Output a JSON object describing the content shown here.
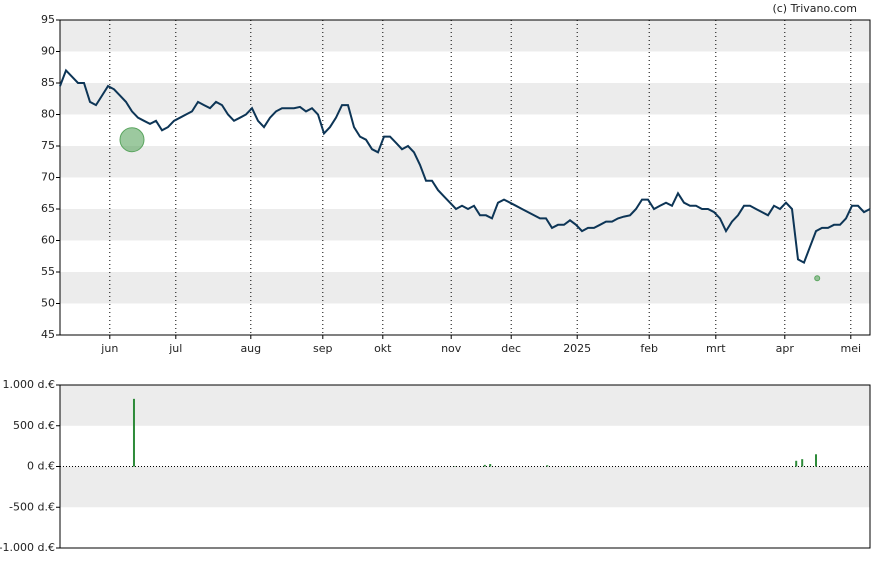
{
  "chart_data": [
    {
      "type": "line",
      "source": "(c) Trivano.com",
      "color": "#0d3556",
      "xlim": [
        0,
        135
      ],
      "ylim": [
        45,
        95
      ],
      "yticks": [
        45,
        50,
        55,
        60,
        65,
        70,
        75,
        80,
        85,
        90,
        95
      ],
      "xticks": [
        {
          "value": 8.3,
          "label": "jun"
        },
        {
          "value": 19.3,
          "label": "jul"
        },
        {
          "value": 31.8,
          "label": "aug"
        },
        {
          "value": 43.8,
          "label": "sep"
        },
        {
          "value": 53.8,
          "label": "okt"
        },
        {
          "value": 65.2,
          "label": "nov"
        },
        {
          "value": 75.2,
          "label": "dec"
        },
        {
          "value": 86.2,
          "label": "2025"
        },
        {
          "value": 98.2,
          "label": "feb"
        },
        {
          "value": 109.3,
          "label": "mrt"
        },
        {
          "value": 120.8,
          "label": "apr"
        },
        {
          "value": 131.8,
          "label": "mei"
        }
      ],
      "values": [
        84.5,
        87,
        86,
        85,
        85,
        82,
        81.5,
        83,
        84.5,
        84,
        83,
        82,
        80.5,
        79.5,
        79,
        78.5,
        79,
        77.5,
        78,
        79,
        79.5,
        80,
        80.5,
        82,
        81.5,
        81,
        82,
        81.5,
        80,
        79,
        79.5,
        80,
        81,
        79,
        78,
        79.5,
        80.5,
        81,
        81,
        81,
        81.2,
        80.5,
        81,
        80,
        77,
        78,
        79.5,
        81.5,
        81.5,
        78,
        76.5,
        76,
        74.5,
        74,
        76.5,
        76.5,
        75.5,
        74.5,
        75,
        74,
        72,
        69.5,
        69.5,
        68,
        67,
        66,
        65,
        65.5,
        65,
        65.5,
        64,
        64,
        63.5,
        66,
        66.5,
        66,
        65.5,
        65,
        64.5,
        64,
        63.5,
        63.5,
        62,
        62.5,
        62.5,
        63.2,
        62.5,
        61.5,
        62,
        62,
        62.5,
        63,
        63,
        63.5,
        63.8,
        64,
        65,
        66.5,
        66.5,
        65,
        65.5,
        66,
        65.5,
        67.5,
        66,
        65.5,
        65.5,
        65,
        65,
        64.5,
        63.5,
        61.5,
        63,
        64,
        65.5,
        65.5,
        65,
        64.5,
        64,
        65.5,
        65,
        66,
        65,
        57,
        56.5,
        59,
        61.5,
        62,
        62,
        62.5,
        62.5,
        63.5,
        65.5,
        65.5,
        64.5,
        65
      ],
      "events": {
        "color": "#5aa55f",
        "x": [
          12,
          126.2
        ],
        "y": [
          76,
          54
        ],
        "size": [
          12,
          2.5
        ]
      }
    },
    {
      "type": "bar",
      "color": "#2e8b3a",
      "xlim": [
        0,
        135
      ],
      "ylim": [
        -1000,
        1000
      ],
      "yticks": [
        {
          "value": -1000,
          "label": "-1.000 d.€"
        },
        {
          "value": -500,
          "label": "-500 d.€"
        },
        {
          "value": 0,
          "label": "0 d.€"
        },
        {
          "value": 500,
          "label": "500 d.€"
        },
        {
          "value": 1000,
          "label": "1.000 d.€"
        }
      ],
      "x": [
        12.33,
        65.8,
        70.8,
        71.7,
        81.2,
        85,
        122.7,
        123.7,
        126
      ],
      "values": [
        830,
        5,
        20,
        30,
        15,
        5,
        70,
        90,
        150
      ]
    }
  ]
}
